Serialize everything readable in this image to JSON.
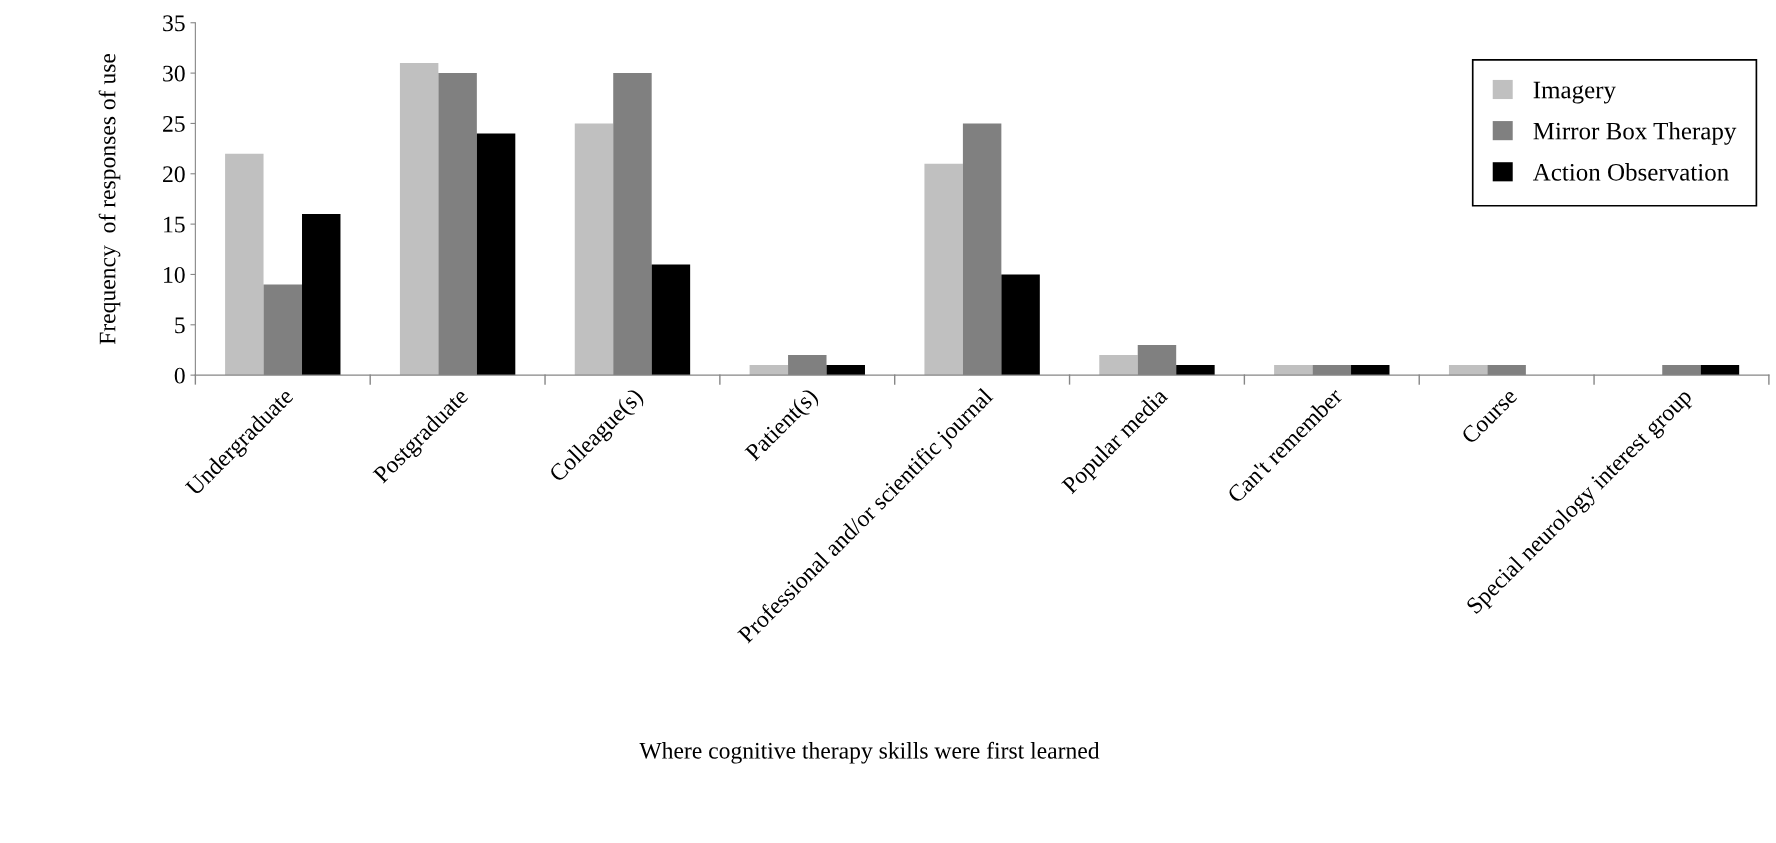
{
  "chart_data": {
    "type": "bar",
    "categories": [
      "Undergraduate",
      "Postgraduate",
      "Colleague(s)",
      "Patient(s)",
      "Professional and/or scientific journal",
      "Popular media",
      "Can't remember",
      "Course",
      "Special neurology interest group"
    ],
    "series": [
      {
        "name": "Imagery",
        "color": "#c0c0c0",
        "values": [
          22,
          31,
          25,
          1,
          21,
          2,
          1,
          1,
          0
        ]
      },
      {
        "name": "Mirror Box Therapy",
        "color": "#808080",
        "values": [
          9,
          30,
          30,
          2,
          25,
          3,
          1,
          1,
          1
        ]
      },
      {
        "name": "Action Observation",
        "color": "#000000",
        "values": [
          16,
          24,
          11,
          1,
          10,
          1,
          1,
          0,
          1
        ]
      }
    ],
    "xlabel": "Where cognitive therapy skills were first learned",
    "ylabel": "Frequency  of responses of use",
    "ylim": [
      0,
      35
    ],
    "yticks": [
      0,
      5,
      10,
      15,
      20,
      25,
      30,
      35
    ],
    "grid": false,
    "legend": "top right"
  }
}
